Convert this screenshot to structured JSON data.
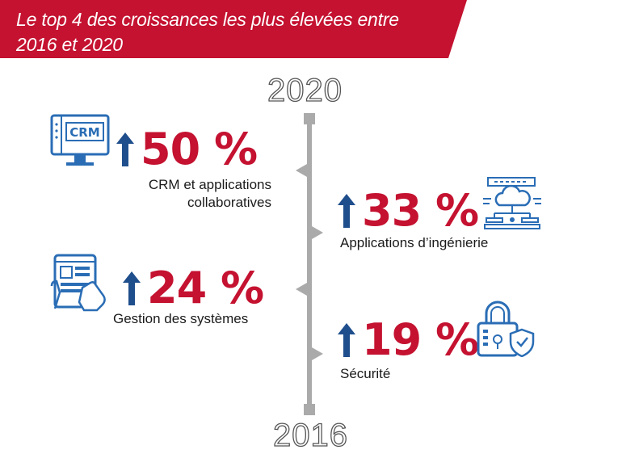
{
  "header": {
    "line1": "Le top 4 des croissances les plus élevées entre",
    "line2": "2016 et 2020",
    "color": "#c41230"
  },
  "timeline": {
    "top_year": "2020",
    "bottom_year": "2016"
  },
  "items": [
    {
      "value": "50 %",
      "label_line1": "CRM et applications",
      "label_line2": "collaboratives",
      "icon": "crm-monitor-icon"
    },
    {
      "value": "33 %",
      "label_line1": "Applications d’ingénierie",
      "icon": "cloud-network-icon"
    },
    {
      "value": "24 %",
      "label_line1": "Gestion des systèmes",
      "icon": "tablet-hand-icon"
    },
    {
      "value": "19 %",
      "label_line1": "Sécurité",
      "icon": "padlock-shield-icon"
    }
  ],
  "crm_icon_text": "CRM",
  "colors": {
    "accent": "#c41230",
    "arrow": "#1f4e8c",
    "icon": "#2a6db5",
    "line": "#aaaaaa"
  }
}
